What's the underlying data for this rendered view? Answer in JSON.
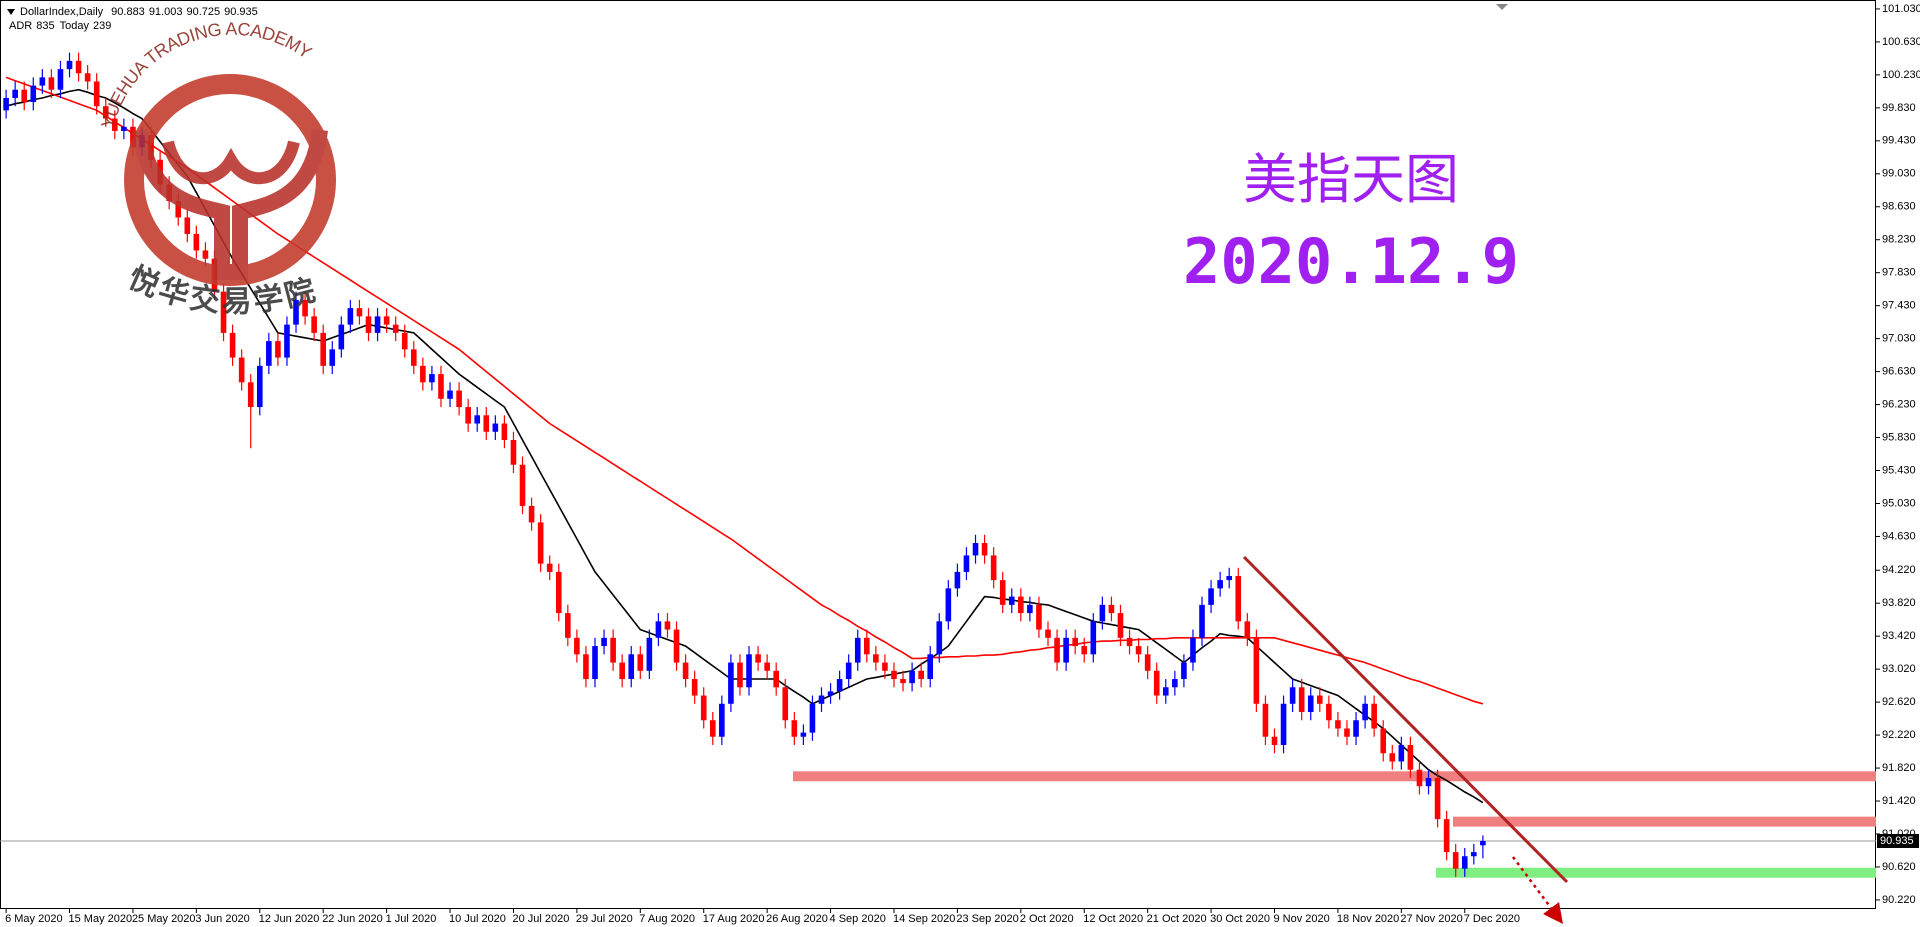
{
  "chart_data": {
    "type": "candlestick",
    "symbol": "DollarIndex,Daily",
    "adr_label": "ADR",
    "adr": 835,
    "today_label": "Today",
    "today": 239,
    "title": "美指天图",
    "subtitle": "2020.12.9",
    "watermark": {
      "text": "YUEHUA TRADING ACADEMY",
      "chinese": "悦华交易学院"
    },
    "up_color": "#0000ff",
    "down_color": "#ff0000",
    "categories": [
      "6 May 2020",
      null,
      null,
      null,
      null,
      null,
      null,
      "15 May 2020",
      null,
      null,
      null,
      null,
      null,
      null,
      "25 May 2020",
      null,
      null,
      null,
      null,
      null,
      null,
      "3 Jun 2020",
      null,
      null,
      null,
      null,
      null,
      null,
      "12 Jun 2020",
      null,
      null,
      null,
      null,
      null,
      null,
      "22 Jun 2020",
      null,
      null,
      null,
      null,
      null,
      null,
      "1 Jul 2020",
      null,
      null,
      null,
      null,
      null,
      null,
      "10 Jul 2020",
      null,
      null,
      null,
      null,
      null,
      null,
      "20 Jul 2020",
      null,
      null,
      null,
      null,
      null,
      null,
      "29 Jul 2020",
      null,
      null,
      null,
      null,
      null,
      null,
      "7 Aug 2020",
      null,
      null,
      null,
      null,
      null,
      null,
      "17 Aug 2020",
      null,
      null,
      null,
      null,
      null,
      null,
      "26 Aug 2020",
      null,
      null,
      null,
      null,
      null,
      null,
      "4 Sep 2020",
      null,
      null,
      null,
      null,
      null,
      null,
      "14 Sep 2020",
      null,
      null,
      null,
      null,
      null,
      null,
      "23 Sep 2020",
      null,
      null,
      null,
      null,
      null,
      null,
      "2 Oct 2020",
      null,
      null,
      null,
      null,
      null,
      null,
      "12 Oct 2020",
      null,
      null,
      null,
      null,
      null,
      null,
      "21 Oct 2020",
      null,
      null,
      null,
      null,
      null,
      null,
      "30 Oct 2020",
      null,
      null,
      null,
      null,
      null,
      null,
      "9 Nov 2020",
      null,
      null,
      null,
      null,
      null,
      null,
      "18 Nov 2020",
      null,
      null,
      null,
      null,
      null,
      null,
      "27 Nov 2020",
      null,
      null,
      null,
      null,
      null,
      null,
      "7 Dec 2020",
      null,
      null
    ],
    "open": [
      99.8,
      99.95,
      100.05,
      99.9,
      100.1,
      100.2,
      100.05,
      100.3,
      100.4,
      100.25,
      100.15,
      99.85,
      99.7,
      99.55,
      99.6,
      99.35,
      99.5,
      99.2,
      98.9,
      98.7,
      98.5,
      98.3,
      98.1,
      98.0,
      97.6,
      97.1,
      96.8,
      96.5,
      96.2,
      96.7,
      97.0,
      96.8,
      97.2,
      97.5,
      97.3,
      97.1,
      96.7,
      96.9,
      97.2,
      97.4,
      97.3,
      97.1,
      97.3,
      97.2,
      97.1,
      96.9,
      96.7,
      96.5,
      96.6,
      96.3,
      96.4,
      96.2,
      96.0,
      96.1,
      95.9,
      96.0,
      95.8,
      95.5,
      95.0,
      94.8,
      94.3,
      94.2,
      93.7,
      93.4,
      93.2,
      92.9,
      93.3,
      93.4,
      93.1,
      92.9,
      93.2,
      93.0,
      93.4,
      93.6,
      93.5,
      93.1,
      92.9,
      92.7,
      92.4,
      92.2,
      92.6,
      93.1,
      92.8,
      93.2,
      93.1,
      93.0,
      92.8,
      92.4,
      92.2,
      92.25,
      92.6,
      92.7,
      92.75,
      92.9,
      93.1,
      93.4,
      93.2,
      93.1,
      93.0,
      92.9,
      92.85,
      93.0,
      92.9,
      93.2,
      93.6,
      94.0,
      94.2,
      94.4,
      94.55,
      94.4,
      94.1,
      93.8,
      93.9,
      93.7,
      93.8,
      93.5,
      93.4,
      93.1,
      93.4,
      93.3,
      93.2,
      93.6,
      93.8,
      93.7,
      93.4,
      93.3,
      93.2,
      93.0,
      92.7,
      92.8,
      92.9,
      93.1,
      93.4,
      93.8,
      94.0,
      94.1,
      94.15,
      93.6,
      93.4,
      92.6,
      92.2,
      92.1,
      92.6,
      92.8,
      92.5,
      92.7,
      92.6,
      92.4,
      92.3,
      92.2,
      92.4,
      92.6,
      92.3,
      92.0,
      91.9,
      92.1,
      91.8,
      91.6,
      91.7,
      91.2,
      90.8,
      90.6,
      90.75,
      90.883
    ],
    "high": [
      100.05,
      100.15,
      100.15,
      100.2,
      100.3,
      100.3,
      100.4,
      100.5,
      100.5,
      100.35,
      100.25,
      99.95,
      99.8,
      99.7,
      99.7,
      99.6,
      99.6,
      99.3,
      99.0,
      98.8,
      98.6,
      98.4,
      98.2,
      98.1,
      97.7,
      97.2,
      96.9,
      96.6,
      96.8,
      97.1,
      97.1,
      97.3,
      97.6,
      97.6,
      97.4,
      97.2,
      97.0,
      97.3,
      97.5,
      97.5,
      97.4,
      97.4,
      97.4,
      97.3,
      97.2,
      97.0,
      96.8,
      96.7,
      96.7,
      96.5,
      96.5,
      96.3,
      96.2,
      96.2,
      96.1,
      96.1,
      95.9,
      95.6,
      95.1,
      94.9,
      94.4,
      94.3,
      93.8,
      93.5,
      93.3,
      93.4,
      93.5,
      93.5,
      93.2,
      93.3,
      93.3,
      93.5,
      93.7,
      93.7,
      93.6,
      93.2,
      93.0,
      92.8,
      92.5,
      92.7,
      93.2,
      93.2,
      93.3,
      93.3,
      93.2,
      93.1,
      92.9,
      92.5,
      92.35,
      92.7,
      92.8,
      92.85,
      93.0,
      93.2,
      93.5,
      93.5,
      93.3,
      93.2,
      93.1,
      93.0,
      93.1,
      93.1,
      93.3,
      93.7,
      94.1,
      94.3,
      94.5,
      94.65,
      94.65,
      94.5,
      94.2,
      94.0,
      94.0,
      93.9,
      93.9,
      93.6,
      93.5,
      93.5,
      93.5,
      93.4,
      93.7,
      93.9,
      93.9,
      93.8,
      93.5,
      93.4,
      93.3,
      93.1,
      92.9,
      93.0,
      93.2,
      93.5,
      93.9,
      94.1,
      94.2,
      94.25,
      94.25,
      93.7,
      93.5,
      92.7,
      92.3,
      92.7,
      92.9,
      92.9,
      92.8,
      92.8,
      92.7,
      92.5,
      92.4,
      92.5,
      92.7,
      92.7,
      92.4,
      92.1,
      92.2,
      92.2,
      91.9,
      91.8,
      91.8,
      91.3,
      90.9,
      90.85,
      90.9,
      91.003
    ],
    "low": [
      99.7,
      99.85,
      99.8,
      99.8,
      100.0,
      99.95,
      99.95,
      100.2,
      100.15,
      100.05,
      99.75,
      99.6,
      99.45,
      99.45,
      99.25,
      99.25,
      99.1,
      98.8,
      98.6,
      98.4,
      98.2,
      98.0,
      97.9,
      97.5,
      97.0,
      96.7,
      96.4,
      95.7,
      96.1,
      96.6,
      96.7,
      96.7,
      97.1,
      97.2,
      97.0,
      96.6,
      96.6,
      96.8,
      97.1,
      97.2,
      97.0,
      97.0,
      97.1,
      97.0,
      96.8,
      96.6,
      96.4,
      96.4,
      96.2,
      96.2,
      96.1,
      95.9,
      95.9,
      95.8,
      95.8,
      95.7,
      95.4,
      94.9,
      94.7,
      94.2,
      94.1,
      93.6,
      93.3,
      93.1,
      92.8,
      92.8,
      93.2,
      93.0,
      92.8,
      92.8,
      92.9,
      92.9,
      93.3,
      93.4,
      93.0,
      92.8,
      92.6,
      92.3,
      92.1,
      92.1,
      92.5,
      92.7,
      92.7,
      93.0,
      92.9,
      92.7,
      92.3,
      92.1,
      92.1,
      92.15,
      92.5,
      92.6,
      92.65,
      92.8,
      93.0,
      93.1,
      93.0,
      92.9,
      92.8,
      92.75,
      92.75,
      92.8,
      92.8,
      93.1,
      93.5,
      93.9,
      94.1,
      94.3,
      94.3,
      94.0,
      93.7,
      93.7,
      93.6,
      93.6,
      93.4,
      93.3,
      93.0,
      93.0,
      93.2,
      93.1,
      93.1,
      93.5,
      93.6,
      93.3,
      93.2,
      93.1,
      92.9,
      92.6,
      92.6,
      92.7,
      92.8,
      93.0,
      93.3,
      93.7,
      93.9,
      94.0,
      93.5,
      93.3,
      92.5,
      92.1,
      92.0,
      92.0,
      92.5,
      92.4,
      92.4,
      92.5,
      92.3,
      92.2,
      92.1,
      92.1,
      92.3,
      92.2,
      91.9,
      91.8,
      91.8,
      91.7,
      91.5,
      91.5,
      91.1,
      90.7,
      90.5,
      90.5,
      90.65,
      90.725
    ],
    "close": [
      99.95,
      100.05,
      99.9,
      100.1,
      100.2,
      100.05,
      100.3,
      100.4,
      100.25,
      100.15,
      99.85,
      99.7,
      99.55,
      99.6,
      99.35,
      99.5,
      99.2,
      98.9,
      98.7,
      98.5,
      98.3,
      98.1,
      98.0,
      97.6,
      97.1,
      96.8,
      96.5,
      96.2,
      96.7,
      97.0,
      96.8,
      97.2,
      97.5,
      97.3,
      97.1,
      96.7,
      96.9,
      97.2,
      97.4,
      97.3,
      97.1,
      97.3,
      97.2,
      97.1,
      96.9,
      96.7,
      96.5,
      96.6,
      96.3,
      96.4,
      96.2,
      96.0,
      96.1,
      95.9,
      96.0,
      95.8,
      95.5,
      95.0,
      94.8,
      94.3,
      94.2,
      93.7,
      93.4,
      93.2,
      92.9,
      93.3,
      93.4,
      93.1,
      92.9,
      93.2,
      93.0,
      93.4,
      93.6,
      93.5,
      93.1,
      92.9,
      92.7,
      92.4,
      92.2,
      92.6,
      93.1,
      92.8,
      93.2,
      93.1,
      93.0,
      92.8,
      92.4,
      92.2,
      92.25,
      92.6,
      92.7,
      92.75,
      92.9,
      93.1,
      93.4,
      93.2,
      93.1,
      93.0,
      92.9,
      92.85,
      93.0,
      92.9,
      93.2,
      93.6,
      94.0,
      94.2,
      94.4,
      94.55,
      94.4,
      94.1,
      93.8,
      93.9,
      93.7,
      93.8,
      93.5,
      93.4,
      93.1,
      93.4,
      93.3,
      93.2,
      93.6,
      93.8,
      93.7,
      93.4,
      93.3,
      93.2,
      93.0,
      92.7,
      92.8,
      92.9,
      93.1,
      93.4,
      93.8,
      94.0,
      94.1,
      94.15,
      93.6,
      93.4,
      92.6,
      92.2,
      92.1,
      92.6,
      92.8,
      92.5,
      92.7,
      92.6,
      92.4,
      92.3,
      92.2,
      92.4,
      92.6,
      92.3,
      92.0,
      91.9,
      92.1,
      91.8,
      91.6,
      91.7,
      91.2,
      90.8,
      90.6,
      90.75,
      90.8,
      90.935
    ],
    "moving_averages": [
      {
        "color": "#000000",
        "values": [
          99.85,
          99.88,
          99.9,
          99.93,
          99.95,
          99.98,
          100.0,
          100.03,
          100.05,
          100.02,
          99.98,
          99.95,
          99.89,
          99.83,
          99.76,
          99.7,
          99.56,
          99.42,
          99.28,
          99.14,
          99.0,
          98.8,
          98.6,
          98.4,
          98.2,
          98.0,
          97.82,
          97.64,
          97.46,
          97.28,
          97.1,
          97.08,
          97.06,
          97.04,
          97.02,
          97.0,
          97.04,
          97.08,
          97.12,
          97.16,
          97.2,
          97.18,
          97.16,
          97.14,
          97.12,
          97.1,
          97.0,
          96.9,
          96.8,
          96.7,
          96.6,
          96.52,
          96.44,
          96.36,
          96.28,
          96.2,
          96.0,
          95.8,
          95.6,
          95.4,
          95.2,
          95.0,
          94.8,
          94.6,
          94.4,
          94.2,
          94.06,
          93.92,
          93.78,
          93.64,
          93.5,
          93.46,
          93.42,
          93.38,
          93.34,
          93.3,
          93.22,
          93.14,
          93.06,
          92.98,
          92.9,
          92.9,
          92.9,
          92.9,
          92.9,
          92.9,
          92.82,
          92.75,
          92.68,
          92.6,
          92.65,
          92.7,
          92.75,
          92.8,
          92.85,
          92.9,
          92.92,
          92.94,
          92.96,
          92.98,
          93.0,
          93.08,
          93.15,
          93.22,
          93.3,
          93.45,
          93.6,
          93.75,
          93.9,
          93.89,
          93.87,
          93.86,
          93.84,
          93.83,
          93.81,
          93.8,
          93.76,
          93.72,
          93.68,
          93.64,
          93.6,
          93.58,
          93.56,
          93.54,
          93.52,
          93.5,
          93.42,
          93.34,
          93.26,
          93.18,
          93.1,
          93.19,
          93.28,
          93.36,
          93.45,
          93.43,
          93.42,
          93.4,
          93.3,
          93.2,
          93.1,
          93.0,
          92.9,
          92.86,
          92.82,
          92.78,
          92.74,
          92.7,
          92.62,
          92.54,
          92.46,
          92.38,
          92.3,
          92.2,
          92.1,
          92.0,
          91.9,
          91.8,
          91.73,
          91.67,
          91.6,
          91.53,
          91.47,
          91.4
        ]
      },
      {
        "color": "#ff0000",
        "values": [
          100.2,
          100.16,
          100.12,
          100.08,
          100.04,
          100.0,
          99.96,
          99.92,
          99.88,
          99.84,
          99.8,
          99.73,
          99.66,
          99.59,
          99.52,
          99.45,
          99.38,
          99.31,
          99.24,
          99.17,
          99.1,
          99.02,
          98.94,
          98.86,
          98.78,
          98.7,
          98.62,
          98.54,
          98.46,
          98.38,
          98.3,
          98.23,
          98.16,
          98.09,
          98.02,
          97.95,
          97.88,
          97.81,
          97.74,
          97.67,
          97.6,
          97.53,
          97.46,
          97.39,
          97.32,
          97.25,
          97.18,
          97.11,
          97.04,
          96.97,
          96.9,
          96.81,
          96.72,
          96.63,
          96.54,
          96.45,
          96.36,
          96.27,
          96.18,
          96.09,
          96.0,
          95.93,
          95.86,
          95.79,
          95.72,
          95.65,
          95.58,
          95.51,
          95.44,
          95.37,
          95.3,
          95.23,
          95.16,
          95.09,
          95.02,
          94.95,
          94.88,
          94.81,
          94.74,
          94.67,
          94.6,
          94.52,
          94.44,
          94.36,
          94.28,
          94.2,
          94.12,
          94.04,
          93.96,
          93.88,
          93.8,
          93.74,
          93.67,
          93.61,
          93.54,
          93.48,
          93.41,
          93.35,
          93.28,
          93.22,
          93.15,
          93.15,
          93.16,
          93.16,
          93.17,
          93.17,
          93.18,
          93.18,
          93.19,
          93.19,
          93.2,
          93.22,
          93.23,
          93.25,
          93.26,
          93.28,
          93.29,
          93.31,
          93.32,
          93.34,
          93.35,
          93.36,
          93.36,
          93.37,
          93.37,
          93.38,
          93.38,
          93.39,
          93.39,
          93.4,
          93.4,
          93.4,
          93.4,
          93.4,
          93.4,
          93.4,
          93.4,
          93.4,
          93.4,
          93.4,
          93.4,
          93.37,
          93.34,
          93.31,
          93.28,
          93.25,
          93.22,
          93.19,
          93.16,
          93.13,
          93.1,
          93.06,
          93.02,
          92.98,
          92.94,
          92.9,
          92.87,
          92.83,
          92.79,
          92.75,
          92.71,
          92.67,
          92.63,
          92.6
        ]
      }
    ],
    "levels": [
      {
        "value": 91.72,
        "color": "#f08080"
      },
      {
        "value": 91.17,
        "color": "#f08080"
      },
      {
        "value": 90.55,
        "color": "#80ee80"
      }
    ],
    "ylim": [
      90.11,
      101.09
    ],
    "yticks": [
      {
        "value": 101.03,
        "label": "101.030"
      },
      {
        "value": 100.63,
        "label": "100.630"
      },
      {
        "value": 100.23,
        "label": "100.230"
      },
      {
        "value": 99.83,
        "label": "99.830"
      },
      {
        "value": 99.43,
        "label": "99.430"
      },
      {
        "value": 99.03,
        "label": "99.030"
      },
      {
        "value": 98.63,
        "label": "98.630"
      },
      {
        "value": 98.23,
        "label": "98.230"
      },
      {
        "value": 97.83,
        "label": "97.830"
      },
      {
        "value": 97.43,
        "label": "97.430"
      },
      {
        "value": 97.03,
        "label": "97.030"
      },
      {
        "value": 96.63,
        "label": "96.630"
      },
      {
        "value": 96.23,
        "label": "96.230"
      },
      {
        "value": 95.83,
        "label": "95.830"
      },
      {
        "value": 95.43,
        "label": "95.430"
      },
      {
        "value": 95.03,
        "label": "95.030"
      },
      {
        "value": 94.63,
        "label": "94.630"
      },
      {
        "value": 94.22,
        "label": "94.220"
      },
      {
        "value": 93.82,
        "label": "93.820"
      },
      {
        "value": 93.42,
        "label": "93.420"
      },
      {
        "value": 93.02,
        "label": "93.020"
      },
      {
        "value": 92.62,
        "label": "92.620"
      },
      {
        "value": 92.22,
        "label": "92.220"
      },
      {
        "value": 91.82,
        "label": "91.820"
      },
      {
        "value": 91.42,
        "label": "91.420"
      },
      {
        "value": 91.02,
        "label": "91.020"
      },
      {
        "value": 90.62,
        "label": "90.620"
      },
      {
        "value": 90.22,
        "label": "90.220"
      }
    ]
  }
}
